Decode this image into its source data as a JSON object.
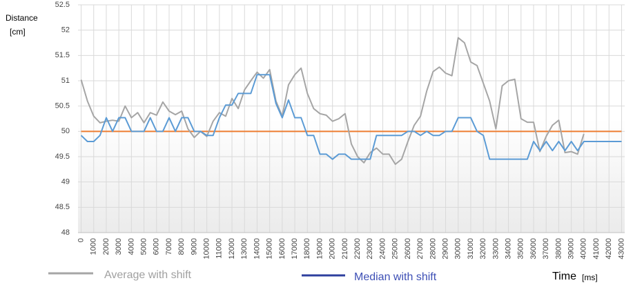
{
  "chart_data": {
    "type": "line",
    "ylabel": [
      "Distance",
      "[cm]"
    ],
    "xlabel": "Time",
    "xlabel_unit": "[ms]",
    "xlim": [
      -250,
      43250
    ],
    "xticks": [
      0,
      1000,
      2000,
      3000,
      4000,
      5000,
      6000,
      7000,
      8000,
      9000,
      10000,
      11000,
      12000,
      13000,
      14000,
      15000,
      16000,
      17000,
      18000,
      19000,
      20000,
      21000,
      22000,
      23000,
      24000,
      25000,
      26000,
      27000,
      28000,
      29000,
      30000,
      31000,
      32000,
      33000,
      34000,
      35000,
      36000,
      37000,
      38000,
      39000,
      40000,
      41000,
      42000,
      43000
    ],
    "ylim": [
      48,
      52.5
    ],
    "yticks": [
      48,
      48.5,
      49,
      49.5,
      50,
      50.5,
      51,
      51.5,
      52,
      52.5
    ],
    "grid": true,
    "reference_line": {
      "value": 50,
      "color": "#ed7d31"
    },
    "series": [
      {
        "name": "Average with shift",
        "color": "#a5a5a5",
        "legend_color": "#a5a5a5",
        "x": [
          0,
          500,
          1000,
          1500,
          2000,
          2500,
          3000,
          3500,
          4000,
          4500,
          5000,
          5500,
          6000,
          6500,
          7000,
          7500,
          8000,
          8500,
          9000,
          9500,
          10000,
          10500,
          11000,
          11500,
          12000,
          12500,
          13000,
          13500,
          14000,
          14500,
          15000,
          15500,
          16000,
          16500,
          17000,
          17500,
          18000,
          18500,
          19000,
          19500,
          20000,
          20500,
          21000,
          21500,
          22000,
          22500,
          23000,
          23500,
          24000,
          24500,
          25000,
          25500,
          26000,
          26500,
          27000,
          27500,
          28000,
          28500,
          29000,
          29500,
          30000,
          30500,
          31000,
          31500,
          32000,
          32500,
          33000,
          33500,
          34000,
          34500,
          35000,
          35500,
          36000,
          36500,
          37000,
          37500,
          38000,
          38500,
          39000,
          39500,
          40000
        ],
        "values": [
          51.02,
          50.6,
          50.3,
          50.17,
          50.2,
          50.22,
          50.2,
          50.5,
          50.27,
          50.37,
          50.17,
          50.37,
          50.32,
          50.58,
          50.4,
          50.33,
          50.4,
          50.05,
          49.88,
          50.0,
          49.9,
          50.2,
          50.37,
          50.3,
          50.65,
          50.45,
          50.82,
          51.0,
          51.17,
          51.05,
          51.22,
          50.6,
          50.3,
          50.92,
          51.12,
          51.25,
          50.75,
          50.45,
          50.35,
          50.32,
          50.2,
          50.25,
          50.35,
          49.75,
          49.5,
          49.38,
          49.58,
          49.67,
          49.55,
          49.55,
          49.35,
          49.45,
          49.8,
          50.12,
          50.3,
          50.8,
          51.18,
          51.27,
          51.15,
          51.1,
          51.85,
          51.75,
          51.37,
          51.3,
          50.95,
          50.6,
          50.05,
          50.9,
          51.0,
          51.03,
          50.25,
          50.18,
          50.18,
          49.6,
          49.9,
          50.12,
          50.22,
          49.58,
          49.6,
          49.55,
          49.95
        ]
      },
      {
        "name": "Median with shift",
        "color": "#5b9bd5",
        "legend_color": "#2e3f9e",
        "x": [
          0,
          500,
          1000,
          1500,
          2000,
          2500,
          3000,
          3500,
          4000,
          4500,
          5000,
          5500,
          6000,
          6500,
          7000,
          7500,
          8000,
          8500,
          9000,
          9500,
          10000,
          10500,
          11000,
          11500,
          12000,
          12500,
          13000,
          13500,
          14000,
          14500,
          15000,
          15500,
          16000,
          16500,
          17000,
          17500,
          18000,
          18500,
          19000,
          19500,
          20000,
          20500,
          21000,
          21500,
          22000,
          22500,
          23000,
          23500,
          24000,
          24500,
          25000,
          25500,
          26000,
          26500,
          27000,
          27500,
          28000,
          28500,
          29000,
          29500,
          30000,
          30500,
          31000,
          31500,
          32000,
          32500,
          33000,
          33500,
          34000,
          34500,
          35000,
          35500,
          36000,
          36500,
          37000,
          37500,
          38000,
          38500,
          39000,
          39500,
          40000,
          40500,
          41000,
          41500,
          42000,
          42500,
          43000
        ],
        "values": [
          49.92,
          49.8,
          49.8,
          49.92,
          50.27,
          50.0,
          50.27,
          50.27,
          50.0,
          50.0,
          50.0,
          50.27,
          50.0,
          50.0,
          50.27,
          50.0,
          50.27,
          50.27,
          50.0,
          50.0,
          49.92,
          49.92,
          50.27,
          50.52,
          50.52,
          50.75,
          50.75,
          50.75,
          51.12,
          51.12,
          51.12,
          50.55,
          50.27,
          50.62,
          50.27,
          50.27,
          49.92,
          49.92,
          49.55,
          49.55,
          49.45,
          49.55,
          49.55,
          49.45,
          49.45,
          49.45,
          49.45,
          49.92,
          49.92,
          49.92,
          49.92,
          49.92,
          50.0,
          50.0,
          49.92,
          50.0,
          49.92,
          49.92,
          50.0,
          50.0,
          50.27,
          50.27,
          50.27,
          50.0,
          49.92,
          49.45,
          49.45,
          49.45,
          49.45,
          49.45,
          49.45,
          49.45,
          49.8,
          49.62,
          49.8,
          49.62,
          49.8,
          49.62,
          49.8,
          49.62,
          49.8,
          49.8,
          49.8,
          49.8,
          49.8,
          49.8,
          49.8
        ]
      }
    ]
  }
}
